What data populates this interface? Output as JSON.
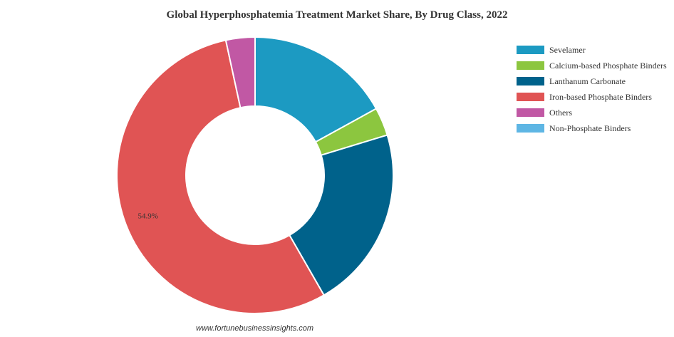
{
  "chart_data": {
    "type": "pie",
    "title": "Global Hyperphosphatemia Treatment Market Share, By Drug Class, 2022",
    "categories": [
      "Sevelamer",
      "Calcium-based Phosphate Binders",
      "Lanthanum Carbonate",
      "Iron-based Phosphate Binders",
      "Others",
      "Non-Phosphate Binders"
    ],
    "values": [
      17.0,
      3.3,
      21.4,
      54.9,
      3.4,
      0.0
    ],
    "colors": [
      "#1c9ac2",
      "#8cc63f",
      "#00628b",
      "#e05454",
      "#c158a4",
      "#5eb6e4"
    ],
    "data_labels": {
      "Iron-based Phosphate Binders": "54.9%"
    },
    "donut": true,
    "legend_position": "right"
  },
  "source": "www.fortunebusinessinsights.com"
}
